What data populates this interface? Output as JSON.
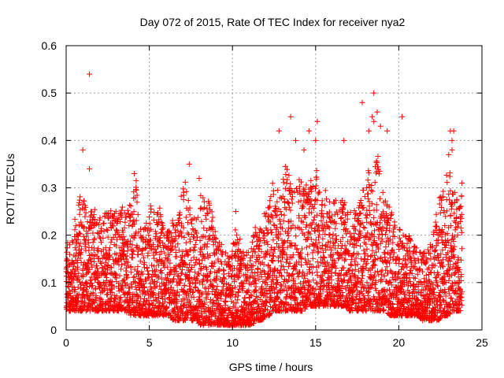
{
  "chart_data": {
    "type": "scatter",
    "title": "Day 072 of 2015, Rate Of TEC Index for receiver nya2",
    "xlabel": "GPS time / hours",
    "ylabel": "ROTI / TECUs",
    "xlim": [
      0,
      25
    ],
    "ylim": [
      0,
      0.6
    ],
    "x_ticks": [
      "0",
      "5",
      "10",
      "15",
      "20",
      "25"
    ],
    "y_ticks": [
      "0",
      "0.1",
      "0.2",
      "0.3",
      "0.4",
      "0.5",
      "0.6"
    ],
    "grid": true,
    "marker": "+",
    "marker_color": "#ff0000",
    "series": [
      {
        "x": [
          0.0,
          0.2,
          0.4,
          0.6,
          0.8,
          1.0,
          1.2,
          1.4,
          1.6,
          1.8,
          2.0,
          2.2,
          2.4,
          2.6,
          2.8,
          3.0,
          3.2,
          3.4,
          3.6,
          3.8,
          4.0,
          4.2,
          4.4,
          4.6,
          4.8,
          5.0,
          5.2,
          5.4,
          5.6,
          5.8,
          6.0,
          6.2,
          6.4,
          6.6,
          6.8,
          7.0,
          7.2,
          7.4,
          7.6,
          7.8,
          8.0,
          8.2,
          8.4,
          8.6,
          8.8,
          9.0,
          9.2,
          9.4,
          9.6,
          9.8,
          10.0,
          10.2,
          10.4,
          10.6,
          10.8,
          11.0,
          11.2,
          11.4,
          11.6,
          11.8,
          12.0,
          12.2,
          12.4,
          12.6,
          12.8,
          13.0,
          13.2,
          13.4,
          13.6,
          13.8,
          14.0,
          14.2,
          14.4,
          14.6,
          14.8,
          15.0,
          15.2,
          15.4,
          15.6,
          15.8,
          16.0,
          16.2,
          16.4,
          16.6,
          16.8,
          17.0,
          17.2,
          17.4,
          17.6,
          17.8,
          18.0,
          18.2,
          18.4,
          18.6,
          18.8,
          19.0,
          19.2,
          19.4,
          19.6,
          19.8,
          20.0,
          20.2,
          20.4,
          20.6,
          20.8,
          21.0,
          21.2,
          21.4,
          21.6,
          21.8,
          22.0,
          22.2,
          22.4,
          22.6,
          22.8,
          23.0,
          23.2,
          23.4,
          23.6,
          23.8
        ],
        "y_low": [
          0.04,
          0.04,
          0.04,
          0.04,
          0.04,
          0.04,
          0.04,
          0.04,
          0.04,
          0.04,
          0.04,
          0.04,
          0.04,
          0.04,
          0.04,
          0.04,
          0.04,
          0.04,
          0.04,
          0.03,
          0.03,
          0.03,
          0.03,
          0.03,
          0.03,
          0.03,
          0.03,
          0.03,
          0.03,
          0.03,
          0.03,
          0.03,
          0.02,
          0.02,
          0.02,
          0.02,
          0.02,
          0.02,
          0.02,
          0.02,
          0.01,
          0.01,
          0.01,
          0.01,
          0.01,
          0.01,
          0.01,
          0.01,
          0.01,
          0.01,
          0.01,
          0.01,
          0.01,
          0.01,
          0.01,
          0.01,
          0.01,
          0.02,
          0.02,
          0.02,
          0.03,
          0.03,
          0.04,
          0.04,
          0.04,
          0.04,
          0.04,
          0.04,
          0.04,
          0.04,
          0.04,
          0.04,
          0.04,
          0.05,
          0.05,
          0.05,
          0.05,
          0.05,
          0.05,
          0.05,
          0.05,
          0.05,
          0.05,
          0.05,
          0.05,
          0.04,
          0.04,
          0.04,
          0.04,
          0.04,
          0.04,
          0.04,
          0.04,
          0.04,
          0.04,
          0.04,
          0.04,
          0.03,
          0.03,
          0.03,
          0.03,
          0.03,
          0.03,
          0.03,
          0.03,
          0.03,
          0.03,
          0.02,
          0.02,
          0.02,
          0.02,
          0.02,
          0.02,
          0.03,
          0.03,
          0.03,
          0.04,
          0.04,
          0.04,
          0.04
        ],
        "y_high": [
          0.2,
          0.18,
          0.2,
          0.26,
          0.28,
          0.3,
          0.27,
          0.25,
          0.26,
          0.27,
          0.25,
          0.22,
          0.28,
          0.27,
          0.25,
          0.28,
          0.25,
          0.26,
          0.24,
          0.27,
          0.3,
          0.33,
          0.22,
          0.22,
          0.22,
          0.28,
          0.25,
          0.26,
          0.27,
          0.23,
          0.2,
          0.22,
          0.24,
          0.22,
          0.25,
          0.3,
          0.33,
          0.27,
          0.25,
          0.24,
          0.27,
          0.3,
          0.28,
          0.27,
          0.26,
          0.2,
          0.2,
          0.18,
          0.17,
          0.15,
          0.18,
          0.22,
          0.2,
          0.16,
          0.18,
          0.17,
          0.2,
          0.22,
          0.22,
          0.25,
          0.25,
          0.28,
          0.32,
          0.3,
          0.3,
          0.33,
          0.36,
          0.33,
          0.3,
          0.3,
          0.32,
          0.35,
          0.32,
          0.3,
          0.33,
          0.35,
          0.32,
          0.3,
          0.3,
          0.28,
          0.27,
          0.28,
          0.28,
          0.3,
          0.28,
          0.25,
          0.25,
          0.26,
          0.27,
          0.29,
          0.33,
          0.35,
          0.32,
          0.35,
          0.38,
          0.3,
          0.28,
          0.26,
          0.25,
          0.22,
          0.22,
          0.21,
          0.2,
          0.2,
          0.19,
          0.18,
          0.17,
          0.16,
          0.17,
          0.18,
          0.2,
          0.23,
          0.28,
          0.3,
          0.32,
          0.35,
          0.33,
          0.3,
          0.26,
          0.3
        ],
        "outliers": [
          [
            1.4,
            0.54
          ],
          [
            1.0,
            0.38
          ],
          [
            1.4,
            0.34
          ],
          [
            4.1,
            0.33
          ],
          [
            7.4,
            0.35
          ],
          [
            8.0,
            0.32
          ],
          [
            10.2,
            0.25
          ],
          [
            12.8,
            0.42
          ],
          [
            13.5,
            0.45
          ],
          [
            13.8,
            0.4
          ],
          [
            14.3,
            0.38
          ],
          [
            14.6,
            0.42
          ],
          [
            15.1,
            0.44
          ],
          [
            15.0,
            0.4
          ],
          [
            16.7,
            0.4
          ],
          [
            17.8,
            0.48
          ],
          [
            18.2,
            0.42
          ],
          [
            18.5,
            0.5
          ],
          [
            18.4,
            0.45
          ],
          [
            18.5,
            0.44
          ],
          [
            18.7,
            0.46
          ],
          [
            18.9,
            0.43
          ],
          [
            19.3,
            0.42
          ],
          [
            20.2,
            0.45
          ],
          [
            23.1,
            0.42
          ],
          [
            23.3,
            0.42
          ],
          [
            23.2,
            0.4
          ],
          [
            23.2,
            0.38
          ],
          [
            23.0,
            0.37
          ],
          [
            23.8,
            0.31
          ],
          [
            22.6,
            0.28
          ]
        ]
      }
    ]
  }
}
